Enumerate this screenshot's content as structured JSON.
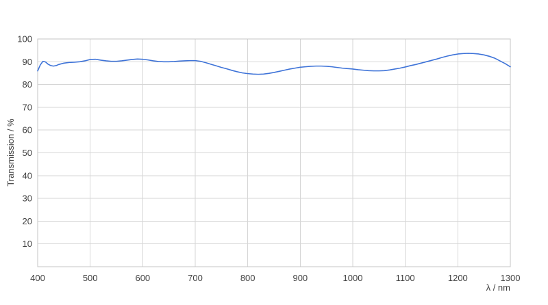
{
  "chart_data": {
    "type": "line",
    "title": "",
    "xlabel": "λ / nm",
    "ylabel": "Transmission / %",
    "xlim": [
      400,
      1300
    ],
    "ylim": [
      0,
      100
    ],
    "x_ticks": [
      400,
      500,
      600,
      700,
      800,
      900,
      1000,
      1100,
      1200,
      1300
    ],
    "y_ticks": [
      10,
      20,
      30,
      40,
      50,
      60,
      70,
      80,
      90,
      100
    ],
    "grid": true,
    "legend": "none",
    "line_color": "#3e73d8",
    "series": [
      {
        "name": "Transmission",
        "x": [
          400,
          405,
          410,
          415,
          420,
          425,
          430,
          435,
          440,
          450,
          460,
          470,
          480,
          490,
          500,
          510,
          520,
          530,
          540,
          550,
          560,
          570,
          580,
          590,
          600,
          610,
          620,
          630,
          640,
          650,
          660,
          670,
          680,
          690,
          700,
          710,
          720,
          730,
          740,
          750,
          760,
          770,
          780,
          790,
          800,
          810,
          820,
          830,
          840,
          850,
          860,
          870,
          880,
          890,
          900,
          910,
          920,
          930,
          940,
          950,
          960,
          970,
          980,
          990,
          1000,
          1010,
          1020,
          1030,
          1040,
          1050,
          1060,
          1070,
          1080,
          1090,
          1100,
          1110,
          1120,
          1130,
          1140,
          1150,
          1160,
          1170,
          1180,
          1190,
          1200,
          1210,
          1220,
          1230,
          1240,
          1250,
          1260,
          1270,
          1280,
          1290,
          1300
        ],
        "y": [
          86.0,
          88.6,
          90.2,
          89.9,
          88.9,
          88.3,
          88.1,
          88.3,
          88.8,
          89.4,
          89.7,
          89.8,
          90.0,
          90.4,
          91.0,
          91.1,
          90.7,
          90.4,
          90.2,
          90.2,
          90.4,
          90.7,
          91.0,
          91.2,
          91.1,
          90.8,
          90.4,
          90.1,
          90.0,
          90.0,
          90.1,
          90.3,
          90.4,
          90.5,
          90.5,
          90.2,
          89.6,
          88.9,
          88.2,
          87.5,
          86.9,
          86.2,
          85.6,
          85.1,
          84.8,
          84.6,
          84.5,
          84.6,
          84.9,
          85.3,
          85.8,
          86.3,
          86.8,
          87.2,
          87.6,
          87.8,
          88.0,
          88.1,
          88.1,
          88.0,
          87.8,
          87.5,
          87.2,
          87.0,
          86.8,
          86.5,
          86.3,
          86.1,
          86.0,
          86.0,
          86.1,
          86.4,
          86.8,
          87.2,
          87.7,
          88.3,
          88.8,
          89.4,
          90.0,
          90.6,
          91.2,
          91.9,
          92.5,
          93.0,
          93.4,
          93.6,
          93.7,
          93.6,
          93.4,
          93.0,
          92.4,
          91.6,
          90.4,
          89.2,
          87.8
        ]
      }
    ]
  },
  "colors": {
    "background": "#ffffff",
    "gridline": "#d6d6d6",
    "plot_border": "#c4c4c4",
    "tick_text": "#404040",
    "line": "#3e73d8"
  }
}
